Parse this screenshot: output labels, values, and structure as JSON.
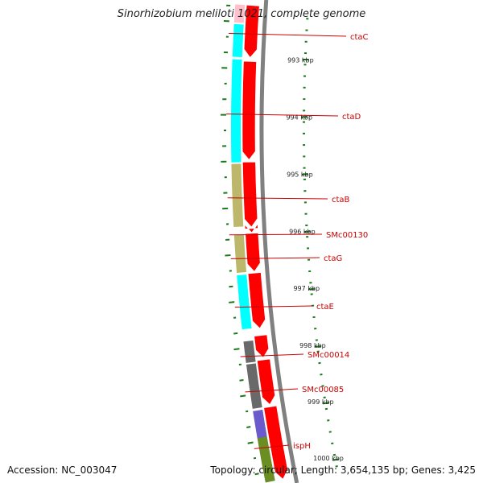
{
  "title": "Sinorhizobium meliloti 1021, complete genome",
  "accession": "Accession: NC_003047",
  "topology": "Topology: circular; Length: 3,654,135 bp; Genes: 3,425",
  "scale_labels": [
    "993 kbp",
    "994 kbp",
    "995 kbp",
    "996 kbp",
    "997 kbp",
    "998 kbp",
    "999 kbp",
    "1000 kbp"
  ],
  "genes": [
    {
      "label": "ctaC",
      "color": "#00ffff"
    },
    {
      "label": "ctaD",
      "color": "#00ffff"
    },
    {
      "label": "ctaB",
      "color": "#bdb76b"
    },
    {
      "label": "SMc00130",
      "color": "#bdb76b"
    },
    {
      "label": "ctaG",
      "color": "#bdb76b"
    },
    {
      "label": "ctaE",
      "color": "#00ffff"
    },
    {
      "label": "SMc00014",
      "color": "#696969"
    },
    {
      "label": "SMc00085",
      "color": "#696969"
    },
    {
      "label": "ispH",
      "color": "#6b8e23"
    }
  ],
  "colors": {
    "cds": "#ff0000",
    "label": "#cc0000",
    "backbone": "#808080",
    "tick": "#1a7a1a",
    "cyan": "#00ffff",
    "khaki": "#bdb76b",
    "gray": "#696969",
    "olive": "#6b8e23",
    "purple": "#6a5acd",
    "pink": "#ffc0cb"
  }
}
